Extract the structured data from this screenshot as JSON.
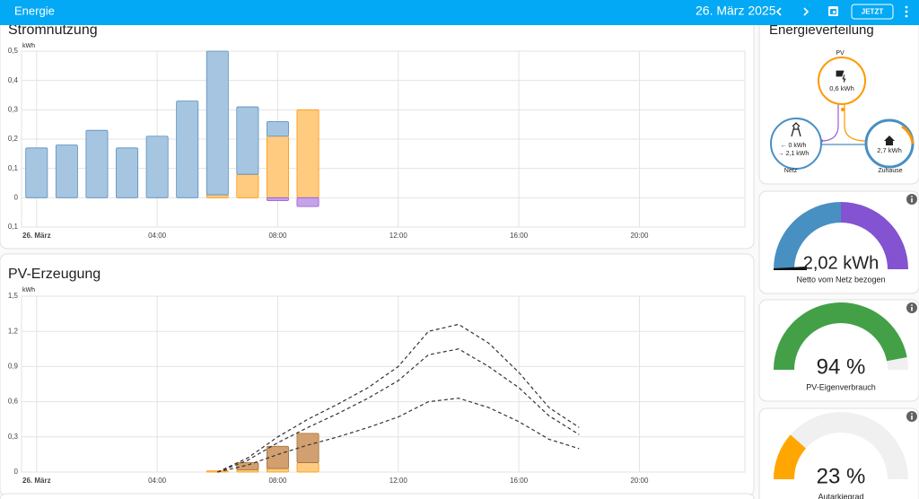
{
  "header": {
    "title": "Energie",
    "date": "26. März 2025",
    "button": "JETZT"
  },
  "usage_chart": {
    "type": "bar",
    "title": "Stromnutzung",
    "unit": "kWh",
    "xlim": [
      -0.5,
      23.5
    ],
    "xticks": [
      {
        "value": 0,
        "label": "26. März"
      },
      {
        "value": 4,
        "label": "04:00"
      },
      {
        "value": 8,
        "label": "08:00"
      },
      {
        "value": 12,
        "label": "12:00"
      },
      {
        "value": 16,
        "label": "16:00"
      },
      {
        "value": 20,
        "label": "20:00"
      }
    ],
    "ylim": [
      -0.1,
      0.5
    ],
    "yticks": [
      {
        "value": 0.5,
        "label": "0,5"
      },
      {
        "value": 0.4,
        "label": "0,4"
      },
      {
        "value": 0.3,
        "label": "0,3"
      },
      {
        "value": 0.2,
        "label": "0,2"
      },
      {
        "value": 0.1,
        "label": "0,1"
      },
      0,
      {
        "value": -0.1,
        "label": "0,1"
      }
    ],
    "x": [
      0,
      1,
      2,
      3,
      4,
      5,
      6,
      7,
      8,
      9
    ],
    "series": [
      {
        "color": "#fecb80",
        "stroke": "#ff9800",
        "values": [
          0,
          0,
          0,
          0,
          0,
          0,
          0.01,
          0.08,
          0.21,
          0.3
        ]
      },
      {
        "color": "#a5c5e1",
        "stroke": "#5b8fbf",
        "values": [
          0.17,
          0.18,
          0.23,
          0.17,
          0.21,
          0.33,
          0.49,
          0.23,
          0.05,
          0
        ]
      },
      {
        "color": "#c4a3e8",
        "stroke": "#9b59d9",
        "values": [
          0,
          0,
          0,
          0,
          0,
          0,
          0,
          0,
          -0.01,
          -0.03
        ]
      }
    ]
  },
  "pv_chart": {
    "type": "bar",
    "title": "PV-Erzeugung",
    "unit": "kWh",
    "xlim": [
      -0.5,
      23.5
    ],
    "xticks": [
      {
        "value": 0,
        "label": "26. März"
      },
      {
        "value": 4,
        "label": "04:00"
      },
      {
        "value": 8,
        "label": "08:00"
      },
      {
        "value": 12,
        "label": "12:00"
      },
      {
        "value": 16,
        "label": "16:00"
      },
      {
        "value": 20,
        "label": "20:00"
      }
    ],
    "ylim": [
      0,
      1.5
    ],
    "yticks": [
      {
        "value": 1.5,
        "label": "1,5"
      },
      {
        "value": 1.2,
        "label": "1,2"
      },
      {
        "value": 0.9,
        "label": "0,9"
      },
      {
        "value": 0.6,
        "label": "0,6"
      },
      {
        "value": 0.3,
        "label": "0,3"
      },
      0
    ],
    "x": [
      6,
      7,
      8,
      9
    ],
    "series": [
      {
        "color": "#fecb80",
        "stroke": "#ff9800",
        "values": [
          0.01,
          0.02,
          0.03,
          0.08
        ]
      },
      {
        "color": "#d2a070",
        "stroke": "#a0703a",
        "values": [
          0,
          0.06,
          0.19,
          0.25
        ]
      }
    ],
    "forecast": {
      "color": "#333333",
      "x": [
        6,
        7,
        8,
        9,
        10,
        11,
        12,
        13,
        14,
        15,
        16,
        17,
        18
      ],
      "lines": [
        {
          "values": [
            0,
            0.12,
            0.3,
            0.45,
            0.58,
            0.72,
            0.9,
            1.2,
            1.26,
            1.1,
            0.85,
            0.55,
            0.38
          ]
        },
        {
          "values": [
            0,
            0.1,
            0.25,
            0.38,
            0.5,
            0.63,
            0.78,
            1.0,
            1.05,
            0.9,
            0.72,
            0.48,
            0.32
          ]
        },
        {
          "values": [
            0,
            0.06,
            0.15,
            0.23,
            0.3,
            0.38,
            0.47,
            0.6,
            0.63,
            0.55,
            0.43,
            0.28,
            0.2
          ]
        }
      ]
    }
  },
  "distribution": {
    "title": "Energieverteilung",
    "pv": {
      "label": "PV",
      "value": "0,6 kWh"
    },
    "grid": {
      "label": "Netz",
      "returned": "← 0 kWh",
      "consumed": "→ 2,1 kWh"
    },
    "home": {
      "label": "Zuhause",
      "value": "2,7 kWh"
    }
  },
  "gauges": [
    {
      "value_label": "2,02 kWh",
      "label": "Netto vom Netz bezogen",
      "colors": [
        "#488fc2",
        "#8353d1"
      ]
    },
    {
      "value": 94,
      "value_label": "94 %",
      "label": "PV-Eigenverbrauch",
      "color": "#43a047"
    },
    {
      "value": 23,
      "value_label": "23 %",
      "label": "Autarkiegrad",
      "color": "#ffa600"
    }
  ]
}
